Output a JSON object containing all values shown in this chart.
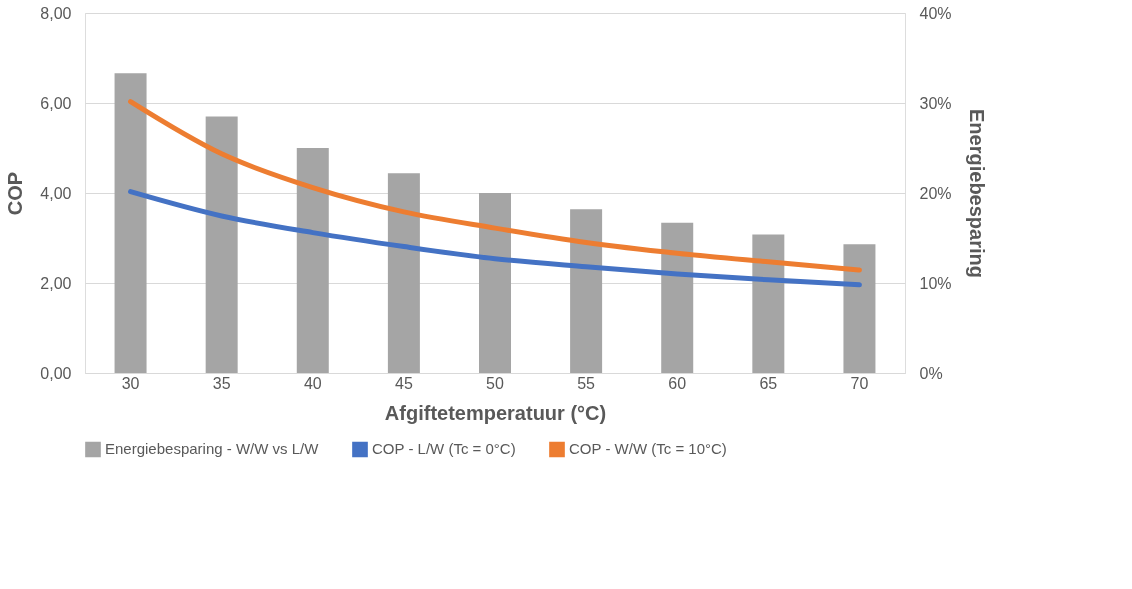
{
  "chart_data": {
    "type": "bar",
    "xlabel": "Afgiftetemperatuur (°C)",
    "ylabel": "COP",
    "y2label": "Energiebesparing",
    "categories": [
      "30",
      "35",
      "40",
      "45",
      "50",
      "55",
      "60",
      "65",
      "70"
    ],
    "series": [
      {
        "name": "Energiebesparing - W/W vs L/W",
        "axis": "y2",
        "color": "#a5a5a5",
        "values": [
          33.3,
          28.5,
          25.0,
          22.2,
          20.0,
          18.2,
          16.7,
          15.4,
          14.3
        ]
      },
      {
        "name": "COP - L/W (Tc = 0°C)",
        "type": "line",
        "color": "#4472c4",
        "values": [
          4.03,
          3.49,
          3.12,
          2.81,
          2.54,
          2.36,
          2.2,
          2.07,
          1.96
        ]
      },
      {
        "name": "COP - W/W (Tc = 10°C)",
        "type": "line",
        "color": "#ed7d31",
        "values": [
          6.03,
          4.87,
          4.12,
          3.58,
          3.22,
          2.9,
          2.66,
          2.47,
          2.29
        ]
      }
    ],
    "ylim": [
      0,
      8
    ],
    "yticks": [
      {
        "value": 0,
        "label": "0,00"
      },
      {
        "value": 2,
        "label": "2,00"
      },
      {
        "value": 4,
        "label": "4,00"
      },
      {
        "value": 6,
        "label": "6,00"
      },
      {
        "value": 8,
        "label": "8,00"
      }
    ],
    "y2lim": [
      0,
      40
    ],
    "y2ticks": [
      {
        "value": 0,
        "label": "0%"
      },
      {
        "value": 10,
        "label": "10%"
      },
      {
        "value": 20,
        "label": "20%"
      },
      {
        "value": 30,
        "label": "30%"
      },
      {
        "value": 40,
        "label": "40%"
      }
    ],
    "grid": "y",
    "legend": "bottom",
    "line_style": "solid",
    "marker": "none"
  }
}
